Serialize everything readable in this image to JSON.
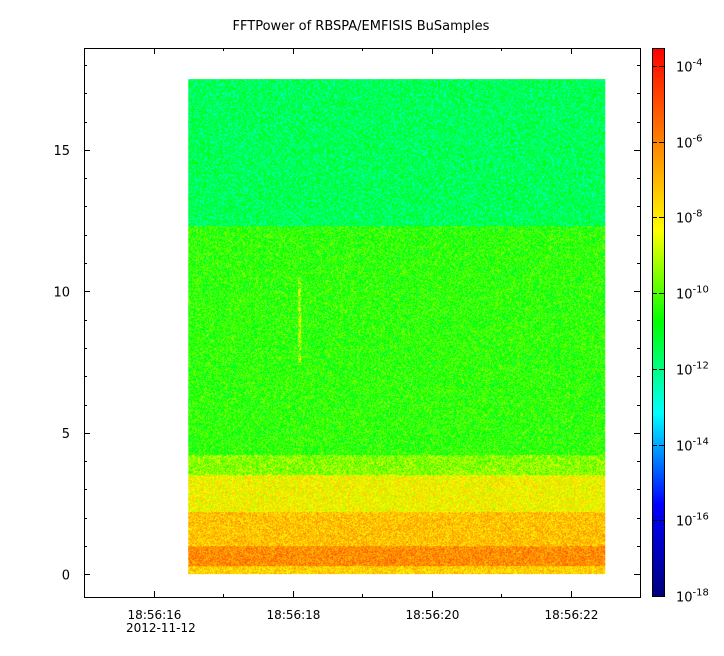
{
  "chart_data": {
    "type": "heatmap",
    "title": "FFTPower of RBSPA/EMFISIS  BuSamples",
    "xlabel": "",
    "ylabel": "",
    "x_axis": {
      "kind": "time",
      "date_label": "2012-11-12",
      "range": [
        "18:56:15.0",
        "18:56:23.0"
      ],
      "major_ticks": [
        "18:56:16",
        "18:56:18",
        "18:56:20",
        "18:56:22"
      ],
      "minor_ticks": [
        "18:56:17",
        "18:56:19",
        "18:56:21",
        "18:56:23"
      ]
    },
    "y_axis": {
      "range": [
        -0.8,
        18.6
      ],
      "ticks": [
        0,
        5,
        10,
        15
      ],
      "tick_labels": [
        "0",
        "5",
        "10",
        "15"
      ],
      "minor_step": 1
    },
    "data_extent": {
      "t_start": "18:56:16.5",
      "t_end": "18:56:22.5",
      "y_min": 0,
      "y_max": 17.5
    },
    "colorbar": {
      "scale": "log",
      "range": [
        1e-18,
        0.0003
      ],
      "tick_values": [
        1e-18,
        1e-16,
        1e-14,
        1e-12,
        1e-10,
        1e-08,
        1e-06,
        0.0001
      ],
      "tick_labels": [
        {
          "base": "10",
          "exp": "-18"
        },
        {
          "base": "10",
          "exp": "-16"
        },
        {
          "base": "10",
          "exp": "-14"
        },
        {
          "base": "10",
          "exp": "-12"
        },
        {
          "base": "10",
          "exp": "-10"
        },
        {
          "base": "10",
          "exp": "-8"
        },
        {
          "base": "10",
          "exp": "-6"
        },
        {
          "base": "10",
          "exp": "-4"
        }
      ],
      "colormap": [
        "#00007f",
        "#0000ff",
        "#00ffff",
        "#00ff00",
        "#ffff00",
        "#ff7f00",
        "#ff0000"
      ]
    },
    "bands": [
      {
        "y_from": 0.0,
        "y_to": 0.3,
        "log_power": -7.5
      },
      {
        "y_from": 0.3,
        "y_to": 1.0,
        "log_power": -6.2
      },
      {
        "y_from": 1.0,
        "y_to": 2.2,
        "log_power": -7.2
      },
      {
        "y_from": 2.2,
        "y_to": 3.5,
        "log_power": -8.2
      },
      {
        "y_from": 3.5,
        "y_to": 4.2,
        "log_power": -9.5
      },
      {
        "y_from": 4.2,
        "y_to": 12.3,
        "log_power": -10.4
      },
      {
        "y_from": 12.3,
        "y_to": 17.5,
        "log_power": -11.6
      }
    ],
    "features": [
      {
        "kind": "narrow-vertical-streak",
        "t": "18:56:18.1",
        "y_from": 7.5,
        "y_to": 10.5,
        "log_power": -8.6
      }
    ]
  }
}
